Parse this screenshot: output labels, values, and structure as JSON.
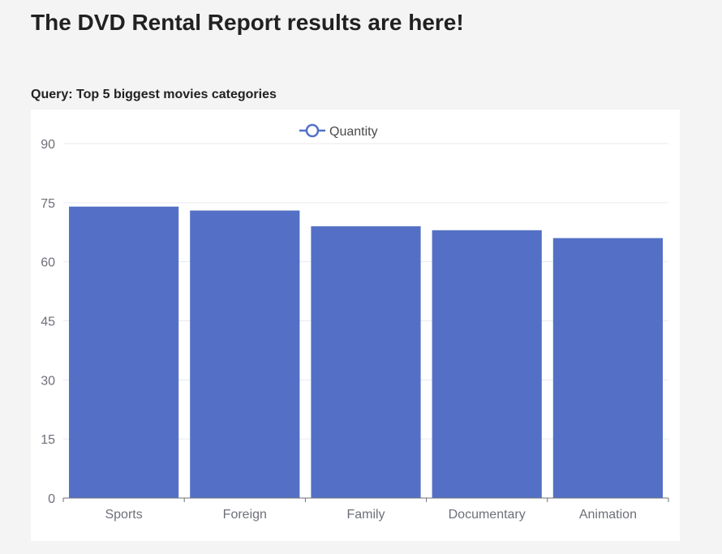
{
  "page": {
    "title": "The DVD Rental Report results are here!",
    "query_label": "Query: Top 5 biggest movies categories"
  },
  "colors": {
    "bar": "#5470c6",
    "background": "#f4f4f4",
    "panel": "#ffffff",
    "grid": "#e8eaf0",
    "axis": "#6e7079"
  },
  "chart_data": {
    "type": "bar",
    "categories": [
      "Sports",
      "Foreign",
      "Family",
      "Documentary",
      "Animation"
    ],
    "series": [
      {
        "name": "Quantity",
        "values": [
          74,
          73,
          69,
          68,
          66
        ]
      }
    ],
    "yticks": [
      0,
      15,
      30,
      45,
      60,
      75,
      90
    ],
    "ylim": [
      0,
      90
    ],
    "grid": true,
    "legend": "top-center",
    "title": "",
    "xlabel": "",
    "ylabel": ""
  }
}
